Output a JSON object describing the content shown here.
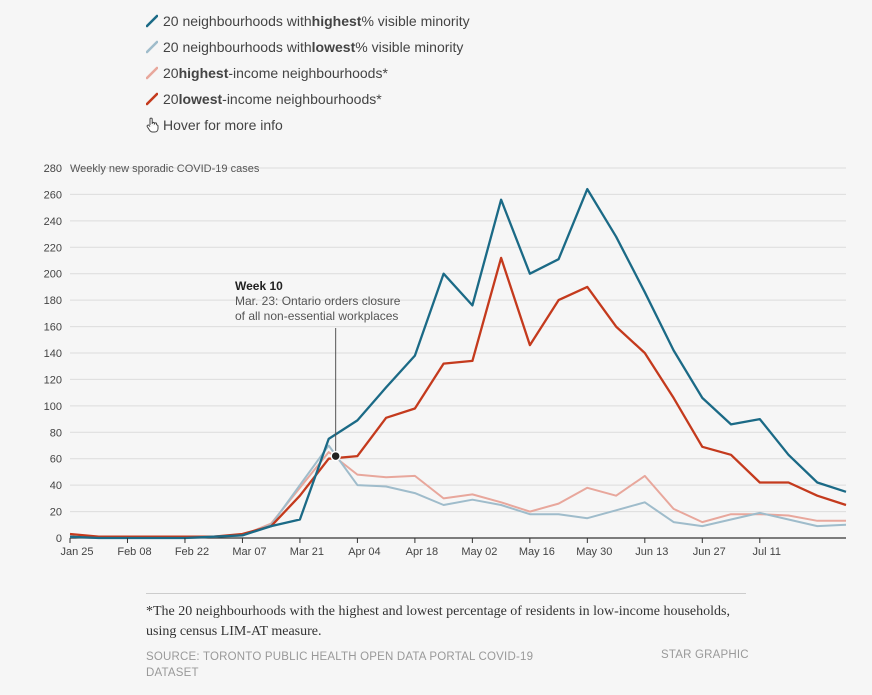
{
  "legend": [
    {
      "pre": "20 neighbourhoods with ",
      "bold": "highest",
      "post": " % visible minority",
      "color": "#1b6a86"
    },
    {
      "pre": "20 neighbourhoods with ",
      "bold": "lowest",
      "post": " % visible minority",
      "color": "#9fbccb"
    },
    {
      "pre": "20 ",
      "bold": "highest",
      "post": "-income neighbourhoods*",
      "color": "#e8a79c"
    },
    {
      "pre": "20 ",
      "bold": "lowest",
      "post": "-income neighbourhoods*",
      "color": "#c43a1d"
    }
  ],
  "hover_hint": "Hover for more info",
  "chart_data": {
    "type": "line",
    "ylabel": "Weekly new sporadic COVID-19 cases",
    "ylim": [
      0,
      280
    ],
    "yticks": [
      0,
      20,
      40,
      60,
      80,
      100,
      120,
      140,
      160,
      180,
      200,
      220,
      240,
      260,
      280
    ],
    "x_tick_labels": [
      "Jan 25",
      "Feb 08",
      "Feb 22",
      "Mar 07",
      "Mar 21",
      "Apr 04",
      "Apr 18",
      "May 02",
      "May 16",
      "May 30",
      "Jun 13",
      "Jun 27",
      "Jul 11"
    ],
    "series": [
      {
        "name": "20 neighbourhoods with highest % visible minority",
        "color": "#1b6a86",
        "values": [
          1,
          0,
          0,
          0,
          0,
          1,
          2,
          9,
          14,
          75,
          89,
          114,
          138,
          200,
          176,
          256,
          200,
          211,
          264,
          228,
          186,
          142,
          106,
          86,
          90,
          63,
          42,
          35
        ]
      },
      {
        "name": "20 neighbourhoods with lowest % visible minority",
        "color": "#9fbccb",
        "values": [
          1,
          0,
          0,
          0,
          0,
          1,
          2,
          10,
          40,
          70,
          40,
          39,
          34,
          25,
          29,
          25,
          18,
          18,
          15,
          21,
          27,
          12,
          9,
          14,
          19,
          14,
          9,
          10
        ]
      },
      {
        "name": "20 highest-income neighbourhoods*",
        "color": "#e8a79c",
        "values": [
          1,
          0,
          0,
          0,
          0,
          1,
          2,
          11,
          38,
          65,
          48,
          46,
          47,
          30,
          33,
          27,
          20,
          26,
          38,
          32,
          47,
          22,
          12,
          18,
          18,
          17,
          13,
          13
        ]
      },
      {
        "name": "20 lowest-income neighbourhoods*",
        "color": "#c43a1d",
        "values": [
          3,
          1,
          1,
          1,
          1,
          1,
          3,
          9,
          32,
          60,
          62,
          91,
          98,
          132,
          134,
          212,
          146,
          180,
          190,
          160,
          140,
          106,
          69,
          63,
          42,
          42,
          32,
          25
        ]
      }
    ],
    "annotation": {
      "title": "Week 10",
      "line1": "Mar. 23: Ontario orders closure",
      "line2": "of all non-essential workplaces",
      "week_index": 9,
      "value": 62
    }
  },
  "footnote": "*The 20 neighbourhoods with the highest and lowest percentage of residents in low-income households, using census LIM-AT measure.",
  "source": "SOURCE: TORONTO PUBLIC HEALTH OPEN DATA PORTAL COVID-19 DATASET",
  "credit": "STAR GRAPHIC"
}
